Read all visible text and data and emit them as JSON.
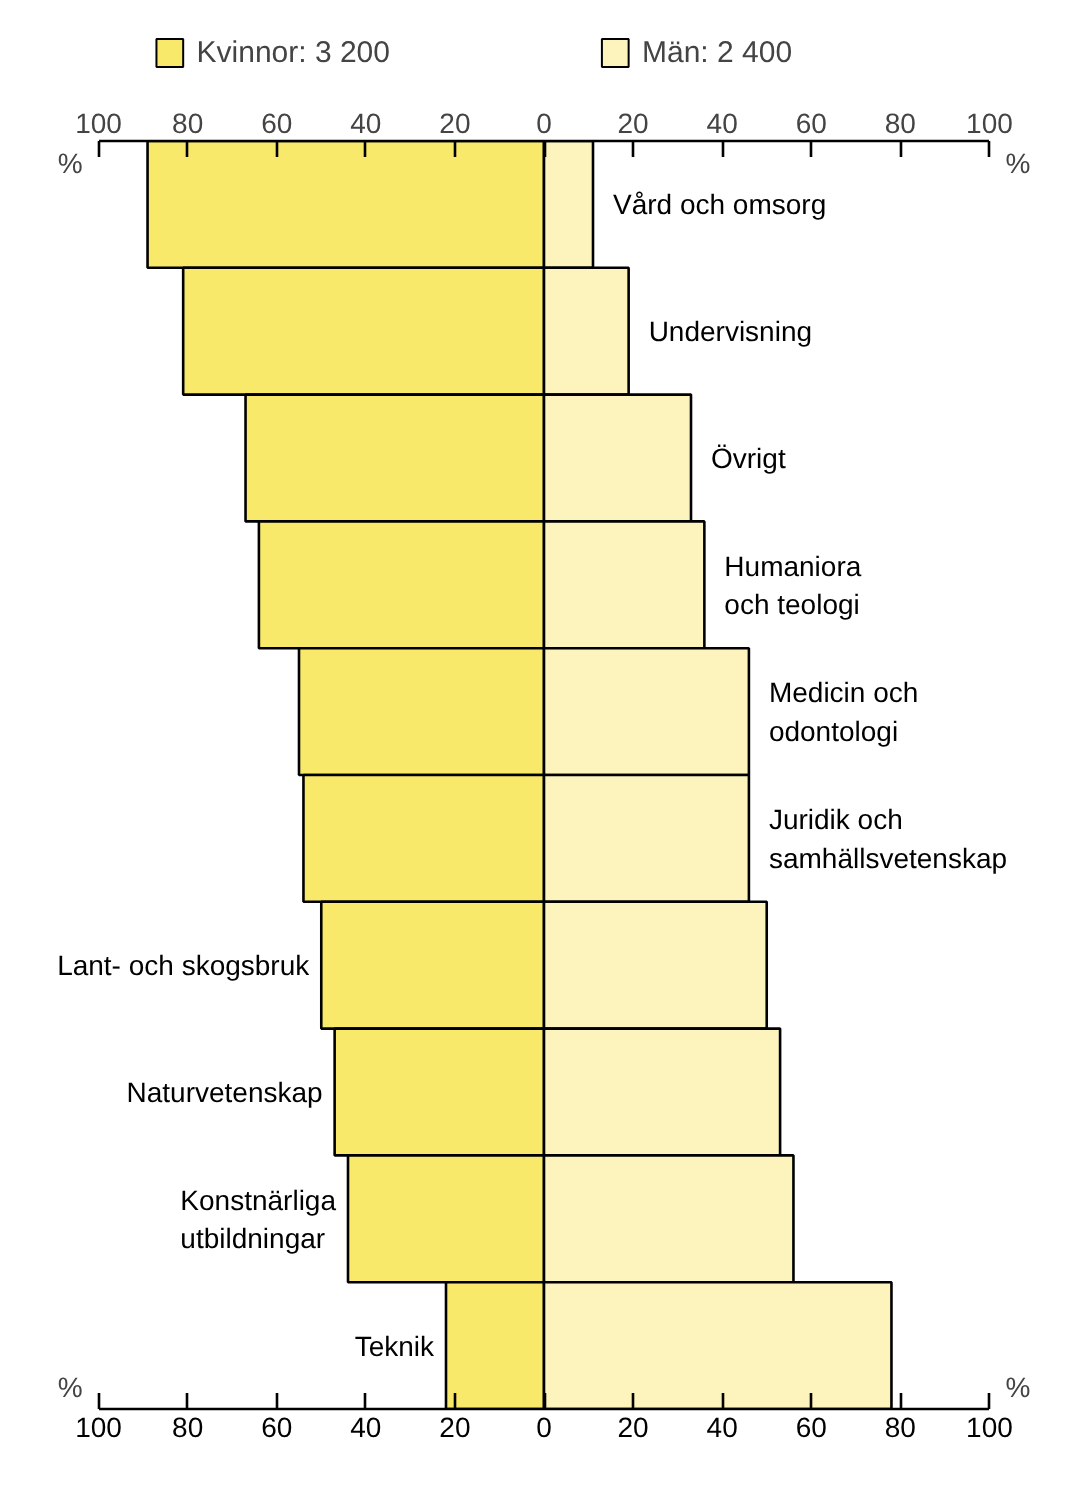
{
  "chart_data": {
    "type": "bar",
    "orientation": "horizontal",
    "stacked": true,
    "categories": [
      "Vård och omsorg",
      "Undervisning",
      "Övrigt",
      "Humaniora\noch teologi",
      "Medicin och\nodontologi",
      "Juridik och\nsamhällsvetenskap",
      "Lant- och skogsbruk",
      "Naturvetenskap",
      "Konstnärliga\nutbildningar",
      "Teknik"
    ],
    "series": [
      {
        "name": "Kvinnor: 3 200",
        "color": "#f9e96a",
        "values": [
          -89,
          -81,
          -67,
          -64,
          -55,
          -54,
          -50,
          -47,
          -44,
          -22
        ]
      },
      {
        "name": "Män: 2 400",
        "color": "#fdf3bc",
        "values": [
          11,
          19,
          33,
          36,
          46,
          46,
          50,
          53,
          56,
          78
        ]
      }
    ],
    "xlabel": "%",
    "xlim": [
      -100,
      100
    ],
    "xticks": [
      {
        "value": -100,
        "label": "100"
      },
      {
        "value": -80,
        "label": "80"
      },
      {
        "value": -60,
        "label": "60"
      },
      {
        "value": -40,
        "label": "40"
      },
      {
        "value": -20,
        "label": "20"
      },
      0,
      20,
      40,
      60,
      80,
      100
    ],
    "x2lim": [
      -100,
      100
    ],
    "x2ticks": [
      {
        "value": -100,
        "label": "100"
      },
      {
        "value": -80,
        "label": "80"
      },
      {
        "value": -60,
        "label": "60"
      },
      {
        "value": -40,
        "label": "40"
      },
      {
        "value": -20,
        "label": "20"
      },
      0,
      20,
      40,
      60,
      80,
      100
    ],
    "tick_labels": "x",
    "grid": false,
    "legend": "top"
  }
}
